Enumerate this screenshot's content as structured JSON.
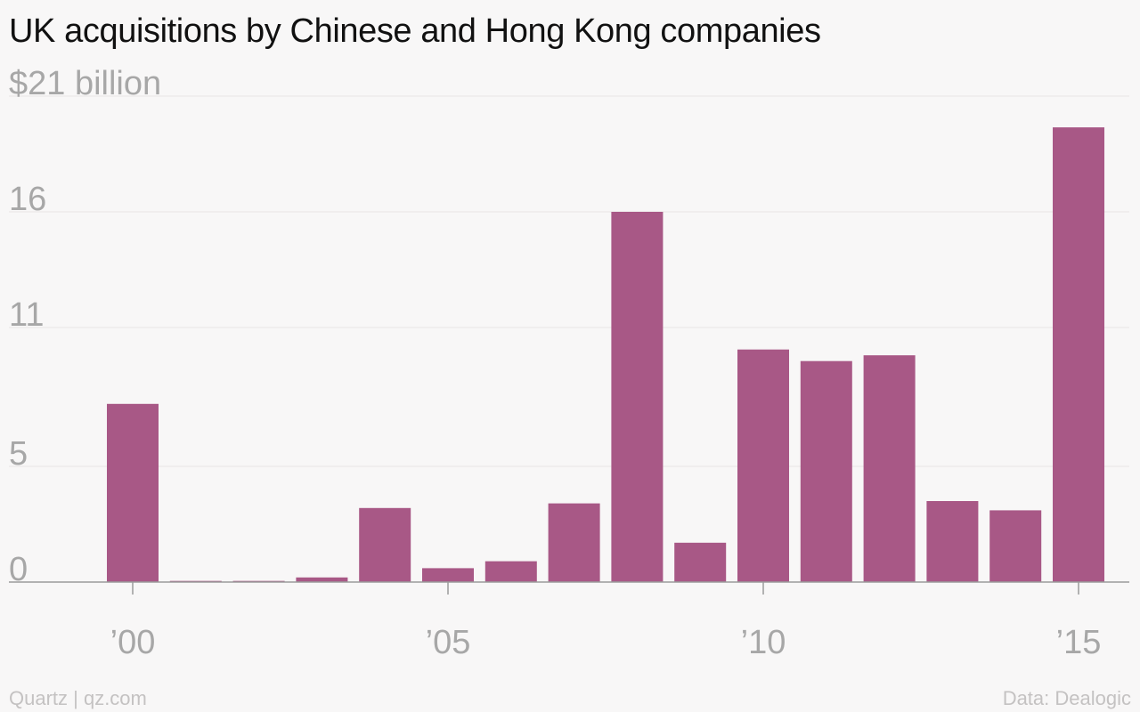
{
  "title": "UK acquisitions by Chinese and Hong Kong companies",
  "footer": {
    "source_left": "Quartz | qz.com",
    "source_right": "Data: Dealogic"
  },
  "colors": {
    "bar": "#a85886",
    "background": "#f8f7f7"
  },
  "chart_data": {
    "type": "bar",
    "title": "UK acquisitions by Chinese and Hong Kong companies",
    "xlabel": "",
    "ylabel": "",
    "ylim": [
      0,
      21
    ],
    "grid": true,
    "legend": "none",
    "unit": "$ billion",
    "categories": [
      2000,
      2001,
      2002,
      2003,
      2004,
      2005,
      2006,
      2007,
      2008,
      2009,
      2010,
      2011,
      2012,
      2013,
      2014,
      2015
    ],
    "values": [
      7.7,
      0.05,
      0.05,
      0.2,
      3.2,
      0.6,
      0.9,
      3.4,
      16.0,
      1.7,
      10.05,
      9.55,
      9.8,
      3.5,
      3.1,
      19.65
    ],
    "y_ticks": [
      {
        "value": 0,
        "label": "0"
      },
      {
        "value": 5,
        "label": "5"
      },
      {
        "value": 11,
        "label": "11"
      },
      {
        "value": 16,
        "label": "16"
      },
      {
        "value": 21,
        "label": "$21 billion"
      }
    ],
    "x_ticks": [
      {
        "value": 2000,
        "label": "’00"
      },
      {
        "value": 2005,
        "label": "’05"
      },
      {
        "value": 2010,
        "label": "’10"
      },
      {
        "value": 2015,
        "label": "’15"
      }
    ]
  }
}
